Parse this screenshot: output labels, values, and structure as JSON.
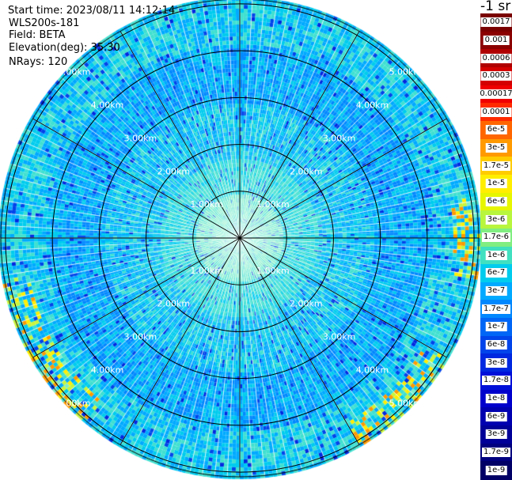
{
  "info": {
    "start_time": "Start time: 2023/08/11 14:12:14",
    "instrument": "WLS200s-181",
    "field": "Field: BETA",
    "elevation": "Elevation(deg): 35.30",
    "nrays": "NRays: 120"
  },
  "ppi": {
    "ring_distances_km": [
      1.0,
      2.0,
      3.0,
      4.0,
      5.0
    ],
    "ring_labels": [
      "1.00km",
      "2.00km",
      "3.00km",
      "4.00km",
      "5.00km"
    ],
    "max_range_km": 5.1,
    "spoke_count": 12,
    "n_rays": 120
  },
  "colorbar": {
    "title": "-1 sr",
    "labels": [
      "0.0017",
      "0.001",
      "0.0006",
      "0.0003",
      "0.00017",
      "0.0001",
      "6e-5",
      "3e-5",
      "1.7e-5",
      "1e-5",
      "6e-6",
      "3e-6",
      "1.7e-6",
      "1e-6",
      "6e-7",
      "3e-7",
      "1.7e-7",
      "1e-7",
      "6e-8",
      "3e-8",
      "1.7e-8",
      "1e-8",
      "6e-9",
      "3e-9",
      "1.7e-9",
      "1e-9"
    ],
    "colors": [
      "#7a0000",
      "#8b0000",
      "#b00000",
      "#d40000",
      "#f00000",
      "#ff2a00",
      "#ff6600",
      "#ff9a00",
      "#ffcc00",
      "#ffee00",
      "#e6f500",
      "#b8f53d",
      "#80ee80",
      "#40e0c0",
      "#00ccee",
      "#00aaff",
      "#0088ff",
      "#0066f5",
      "#0044ea",
      "#0028e0",
      "#0010d8",
      "#0000cc",
      "#0000b0",
      "#000098",
      "#000080",
      "#000066"
    ]
  }
}
